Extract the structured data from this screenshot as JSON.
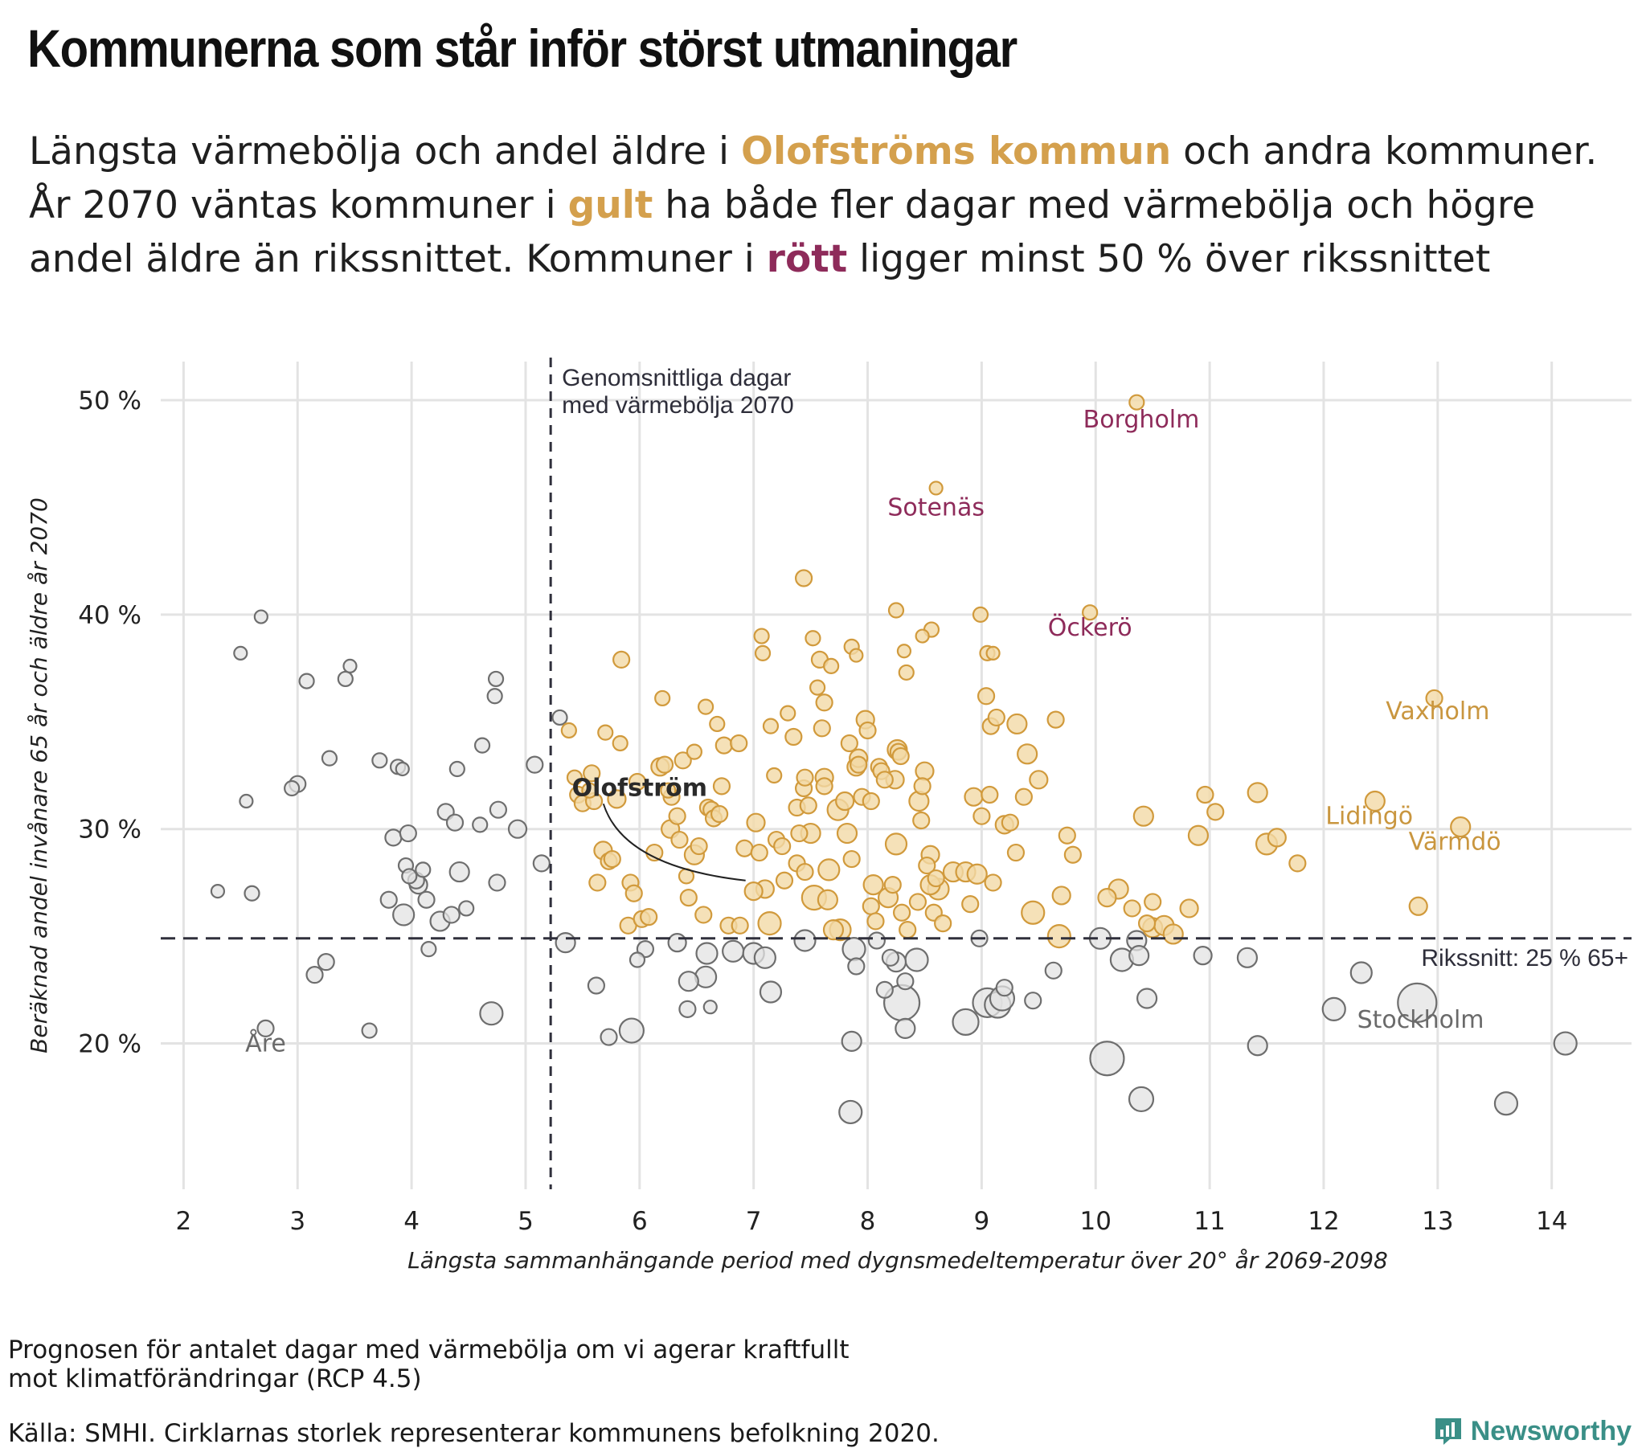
{
  "title": "Kommunerna som står inför störst utmaningar",
  "subtitle": {
    "p1": "Längsta värmebölja och andel äldre i ",
    "hl1": "Olofströms kommun",
    "p2": " och andra kommuner. År 2070 väntas kommuner i ",
    "hl2": "gult",
    "p3": " ha både fler dagar med värmebölja och högre andel äldre än rikssnittet. Kommuner i ",
    "hl3": "rött",
    "p4": " ligger minst 50 % över rikssnittet"
  },
  "colors": {
    "gold_fill": "#f2d9a6",
    "gold_stroke": "#d19a3c",
    "red_fill": "#d98aa8",
    "red_stroke": "#8e2b5a",
    "grey_fill": "#e3e3e3",
    "grey_stroke": "#6e6e6e",
    "grid": "#e3e3e3",
    "ref_line": "#30303c"
  },
  "chart_data": {
    "type": "scatter",
    "xlabel": "Längsta sammanhängande period med dygnsmedeltemperatur över 20° år 2069-2098",
    "ylabel": "Beräknad andel invånare 65 år och äldre år 2070",
    "xlim": [
      1.8,
      14.7
    ],
    "ylim": [
      13.2,
      51.8
    ],
    "x_ticks": [
      2,
      3,
      4,
      5,
      6,
      7,
      8,
      9,
      10,
      11,
      12,
      13,
      14
    ],
    "y_ticks": [
      20,
      30,
      40,
      50
    ],
    "y_tick_labels": [
      "20 %",
      "30 %",
      "40 %",
      "50 %"
    ],
    "grid": true,
    "reference_lines": {
      "vertical": {
        "x": 5.22,
        "label_line1": "Genomsnittliga dagar",
        "label_line2": "med värmebölja 2070"
      },
      "horizontal": {
        "y": 24.9,
        "label": "Rikssnitt: 25 % 65+"
      }
    },
    "labels": [
      {
        "text": "Borgholm",
        "x": 10.4,
        "y": 49.1,
        "group": "red"
      },
      {
        "text": "Sotenäs",
        "x": 8.6,
        "y": 45.0,
        "group": "red"
      },
      {
        "text": "Öckerö",
        "x": 9.95,
        "y": 39.4,
        "group": "red"
      },
      {
        "text": "Vaxholm",
        "x": 13.0,
        "y": 35.5,
        "group": "gold"
      },
      {
        "text": "Lidingö",
        "x": 12.4,
        "y": 30.6,
        "group": "gold"
      },
      {
        "text": "Värmdö",
        "x": 13.15,
        "y": 29.4,
        "group": "gold"
      },
      {
        "text": "Stockholm",
        "x": 12.85,
        "y": 21.1,
        "group": "grey"
      },
      {
        "text": "Åre",
        "x": 2.72,
        "y": 20.0,
        "group": "grey"
      }
    ],
    "highlight": {
      "text": "Olofström",
      "x": 7.0,
      "y": 27.3,
      "label_x": 6.0,
      "label_y": 32.0
    },
    "points": [
      [
        2.3,
        27.1,
        8
      ],
      [
        2.5,
        38.2,
        8
      ],
      [
        2.55,
        31.3,
        8
      ],
      [
        2.6,
        27.0,
        9
      ],
      [
        2.68,
        39.9,
        8
      ],
      [
        2.72,
        20.7,
        10
      ],
      [
        2.95,
        31.9,
        9
      ],
      [
        3.0,
        32.1,
        10
      ],
      [
        3.08,
        36.9,
        9
      ],
      [
        3.15,
        23.2,
        10
      ],
      [
        3.25,
        23.8,
        10
      ],
      [
        3.28,
        33.3,
        9
      ],
      [
        3.42,
        37.0,
        9
      ],
      [
        3.46,
        37.6,
        8
      ],
      [
        3.63,
        20.6,
        9
      ],
      [
        3.72,
        33.2,
        9
      ],
      [
        3.8,
        26.7,
        10
      ],
      [
        3.84,
        29.6,
        10
      ],
      [
        3.88,
        32.9,
        9
      ],
      [
        3.92,
        32.8,
        8
      ],
      [
        3.93,
        26.0,
        13
      ],
      [
        3.95,
        28.3,
        9
      ],
      [
        3.97,
        29.8,
        10
      ],
      [
        3.98,
        27.8,
        9
      ],
      [
        4.04,
        27.6,
        10
      ],
      [
        4.06,
        27.4,
        11
      ],
      [
        4.1,
        28.1,
        9
      ],
      [
        4.13,
        26.7,
        10
      ],
      [
        4.15,
        24.4,
        9
      ],
      [
        4.25,
        25.7,
        12
      ],
      [
        4.3,
        30.8,
        10
      ],
      [
        4.35,
        26.0,
        10
      ],
      [
        4.38,
        30.3,
        10
      ],
      [
        4.4,
        32.8,
        9
      ],
      [
        4.42,
        28.0,
        12
      ],
      [
        4.48,
        26.3,
        9
      ],
      [
        4.62,
        33.9,
        9
      ],
      [
        4.6,
        30.2,
        9
      ],
      [
        4.7,
        21.4,
        14
      ],
      [
        4.73,
        36.2,
        9
      ],
      [
        4.74,
        37.0,
        9
      ],
      [
        4.75,
        27.5,
        10
      ],
      [
        4.76,
        30.9,
        10
      ],
      [
        4.93,
        30.0,
        11
      ],
      [
        5.08,
        33.0,
        10
      ],
      [
        5.14,
        28.4,
        10
      ],
      [
        5.35,
        24.7,
        12
      ],
      [
        5.62,
        22.7,
        10
      ],
      [
        5.73,
        20.3,
        10
      ],
      [
        5.93,
        20.6,
        15
      ],
      [
        5.98,
        23.9,
        9
      ],
      [
        6.05,
        24.4,
        10
      ],
      [
        6.33,
        24.7,
        11
      ],
      [
        6.43,
        22.9,
        12
      ],
      [
        6.42,
        21.6,
        10
      ],
      [
        6.58,
        23.1,
        13
      ],
      [
        6.59,
        24.2,
        13
      ],
      [
        6.62,
        21.7,
        8
      ],
      [
        6.82,
        24.3,
        13
      ],
      [
        7.0,
        24.2,
        13
      ],
      [
        7.1,
        24.0,
        13
      ],
      [
        7.15,
        22.4,
        13
      ],
      [
        7.45,
        24.8,
        13
      ],
      [
        7.86,
        20.1,
        12
      ],
      [
        7.88,
        24.4,
        14
      ],
      [
        7.85,
        16.8,
        14
      ],
      [
        7.9,
        23.6,
        10
      ],
      [
        8.08,
        24.8,
        10
      ],
      [
        8.15,
        22.5,
        10
      ],
      [
        8.2,
        24.0,
        10
      ],
      [
        8.25,
        23.8,
        12
      ],
      [
        8.3,
        21.9,
        22
      ],
      [
        8.33,
        20.7,
        12
      ],
      [
        8.33,
        22.9,
        10
      ],
      [
        8.43,
        23.9,
        14
      ],
      [
        8.86,
        21.0,
        16
      ],
      [
        8.98,
        24.9,
        10
      ],
      [
        9.05,
        21.9,
        18
      ],
      [
        9.14,
        21.8,
        16
      ],
      [
        9.18,
        22.1,
        15
      ],
      [
        9.2,
        22.6,
        10
      ],
      [
        9.45,
        22.0,
        10
      ],
      [
        9.63,
        23.4,
        10
      ],
      [
        10.04,
        24.9,
        13
      ],
      [
        10.1,
        19.3,
        21
      ],
      [
        10.23,
        23.9,
        14
      ],
      [
        10.36,
        24.8,
        12
      ],
      [
        10.38,
        24.1,
        12
      ],
      [
        10.4,
        17.4,
        15
      ],
      [
        10.45,
        22.1,
        12
      ],
      [
        10.94,
        24.1,
        11
      ],
      [
        11.33,
        24.0,
        12
      ],
      [
        11.42,
        19.9,
        12
      ],
      [
        12.09,
        21.6,
        14
      ],
      [
        12.33,
        23.3,
        13
      ],
      [
        12.82,
        21.9,
        24
      ],
      [
        13.6,
        17.2,
        14
      ],
      [
        14.12,
        20.0,
        14
      ],
      [
        5.3,
        35.2,
        9
      ],
      [
        5.38,
        34.6,
        9
      ],
      [
        5.43,
        32.4,
        9
      ],
      [
        5.46,
        31.6,
        10
      ],
      [
        5.5,
        31.2,
        10
      ],
      [
        5.56,
        31.8,
        9
      ],
      [
        5.58,
        32.6,
        10
      ],
      [
        5.6,
        31.3,
        10
      ],
      [
        5.63,
        27.5,
        10
      ],
      [
        5.68,
        29.0,
        11
      ],
      [
        5.7,
        34.5,
        9
      ],
      [
        5.73,
        28.5,
        10
      ],
      [
        5.76,
        28.6,
        10
      ],
      [
        5.8,
        31.4,
        11
      ],
      [
        5.83,
        34.0,
        9
      ],
      [
        5.84,
        37.9,
        10
      ],
      [
        5.9,
        25.5,
        10
      ],
      [
        5.92,
        27.5,
        10
      ],
      [
        5.95,
        27.0,
        10
      ],
      [
        5.98,
        32.2,
        10
      ],
      [
        6.02,
        25.8,
        10
      ],
      [
        6.08,
        25.9,
        10
      ],
      [
        6.13,
        28.9,
        10
      ],
      [
        6.18,
        32.9,
        11
      ],
      [
        6.2,
        36.1,
        9
      ],
      [
        6.22,
        33.0,
        10
      ],
      [
        6.25,
        31.8,
        9
      ],
      [
        6.27,
        30.0,
        11
      ],
      [
        6.28,
        31.5,
        10
      ],
      [
        6.33,
        30.6,
        10
      ],
      [
        6.35,
        29.5,
        10
      ],
      [
        6.38,
        33.2,
        10
      ],
      [
        6.41,
        27.8,
        9
      ],
      [
        6.43,
        26.8,
        10
      ],
      [
        6.48,
        33.6,
        9
      ],
      [
        6.48,
        28.8,
        12
      ],
      [
        6.52,
        29.2,
        10
      ],
      [
        6.56,
        26.0,
        10
      ],
      [
        6.58,
        35.7,
        9
      ],
      [
        6.6,
        31.0,
        10
      ],
      [
        6.63,
        30.9,
        10
      ],
      [
        6.65,
        30.5,
        10
      ],
      [
        6.68,
        34.9,
        9
      ],
      [
        6.7,
        30.7,
        10
      ],
      [
        6.72,
        32.0,
        10
      ],
      [
        6.74,
        33.9,
        10
      ],
      [
        6.78,
        25.5,
        10
      ],
      [
        6.87,
        34.0,
        10
      ],
      [
        6.88,
        25.5,
        10
      ],
      [
        6.92,
        29.1,
        10
      ],
      [
        7.02,
        30.3,
        11
      ],
      [
        7.05,
        28.9,
        10
      ],
      [
        7.07,
        39.0,
        9
      ],
      [
        7.08,
        38.2,
        9
      ],
      [
        7.1,
        27.2,
        11
      ],
      [
        7.14,
        25.6,
        14
      ],
      [
        7.15,
        34.8,
        9
      ],
      [
        7.18,
        32.5,
        9
      ],
      [
        7.2,
        29.5,
        10
      ],
      [
        7.25,
        29.2,
        10
      ],
      [
        7.27,
        27.6,
        10
      ],
      [
        7.3,
        35.4,
        9
      ],
      [
        7.35,
        34.3,
        10
      ],
      [
        7.38,
        31.0,
        10
      ],
      [
        7.38,
        28.4,
        10
      ],
      [
        7.4,
        29.8,
        10
      ],
      [
        7.44,
        31.9,
        10
      ],
      [
        7.44,
        41.7,
        10
      ],
      [
        7.45,
        28.0,
        10
      ],
      [
        7.45,
        32.4,
        10
      ],
      [
        7.48,
        31.1,
        10
      ],
      [
        7.5,
        29.8,
        12
      ],
      [
        7.52,
        38.9,
        9
      ],
      [
        7.53,
        26.8,
        15
      ],
      [
        7.56,
        36.6,
        9
      ],
      [
        7.58,
        37.9,
        10
      ],
      [
        7.6,
        34.7,
        10
      ],
      [
        7.62,
        35.9,
        10
      ],
      [
        7.62,
        32.4,
        11
      ],
      [
        7.62,
        32.0,
        10
      ],
      [
        7.65,
        26.7,
        12
      ],
      [
        7.66,
        28.1,
        13
      ],
      [
        7.68,
        37.6,
        9
      ],
      [
        7.7,
        25.3,
        12
      ],
      [
        7.74,
        30.9,
        13
      ],
      [
        7.76,
        25.3,
        13
      ],
      [
        7.8,
        31.3,
        11
      ],
      [
        7.82,
        29.8,
        12
      ],
      [
        7.84,
        34.0,
        10
      ],
      [
        7.86,
        28.6,
        10
      ],
      [
        7.9,
        32.9,
        11
      ],
      [
        7.92,
        33.3,
        11
      ],
      [
        7.92,
        33.0,
        10
      ],
      [
        7.95,
        31.5,
        10
      ],
      [
        7.98,
        35.1,
        11
      ],
      [
        8.0,
        34.6,
        10
      ],
      [
        8.03,
        26.4,
        10
      ],
      [
        8.03,
        31.3,
        10
      ],
      [
        8.05,
        27.4,
        12
      ],
      [
        8.07,
        25.7,
        10
      ],
      [
        8.1,
        32.9,
        10
      ],
      [
        8.12,
        32.7,
        10
      ],
      [
        8.15,
        32.3,
        10
      ],
      [
        8.18,
        26.8,
        12
      ],
      [
        8.22,
        27.4,
        10
      ],
      [
        8.24,
        32.3,
        11
      ],
      [
        8.25,
        29.3,
        13
      ],
      [
        8.26,
        33.7,
        12
      ],
      [
        8.27,
        33.6,
        10
      ],
      [
        8.29,
        33.4,
        10
      ],
      [
        8.3,
        26.1,
        10
      ],
      [
        8.34,
        37.3,
        9
      ],
      [
        8.35,
        25.3,
        10
      ],
      [
        8.44,
        26.6,
        10
      ],
      [
        8.45,
        31.3,
        12
      ],
      [
        8.47,
        30.4,
        10
      ],
      [
        8.48,
        32.0,
        10
      ],
      [
        8.5,
        32.7,
        11
      ],
      [
        8.52,
        28.3,
        10
      ],
      [
        8.55,
        27.4,
        12
      ],
      [
        8.55,
        28.8,
        11
      ],
      [
        8.58,
        26.1,
        10
      ],
      [
        8.6,
        27.7,
        10
      ],
      [
        8.62,
        27.2,
        13
      ],
      [
        8.66,
        25.6,
        10
      ],
      [
        8.75,
        28.0,
        12
      ],
      [
        8.86,
        28.0,
        12
      ],
      [
        8.9,
        26.5,
        10
      ],
      [
        8.93,
        31.5,
        11
      ],
      [
        8.96,
        27.9,
        12
      ],
      [
        9.0,
        30.6,
        10
      ],
      [
        9.04,
        36.2,
        10
      ],
      [
        9.07,
        31.6,
        10
      ],
      [
        9.08,
        34.8,
        10
      ],
      [
        9.1,
        27.5,
        10
      ],
      [
        9.13,
        35.2,
        10
      ],
      [
        9.2,
        30.2,
        11
      ],
      [
        9.25,
        30.3,
        10
      ],
      [
        9.3,
        28.9,
        10
      ],
      [
        9.31,
        34.9,
        12
      ],
      [
        9.37,
        31.5,
        10
      ],
      [
        9.4,
        33.5,
        12
      ],
      [
        9.45,
        26.1,
        14
      ],
      [
        9.5,
        32.3,
        11
      ],
      [
        9.65,
        35.1,
        10
      ],
      [
        9.68,
        25.0,
        14
      ],
      [
        9.7,
        26.9,
        11
      ],
      [
        9.75,
        29.7,
        10
      ],
      [
        9.8,
        28.8,
        10
      ],
      [
        10.1,
        26.8,
        11
      ],
      [
        10.2,
        27.2,
        12
      ],
      [
        10.32,
        26.3,
        10
      ],
      [
        10.42,
        30.6,
        12
      ],
      [
        10.45,
        25.6,
        10
      ],
      [
        10.5,
        26.6,
        10
      ],
      [
        10.5,
        25.4,
        12
      ],
      [
        10.6,
        25.5,
        12
      ],
      [
        10.68,
        25.1,
        12
      ],
      [
        10.82,
        26.3,
        11
      ],
      [
        10.9,
        29.7,
        12
      ],
      [
        10.96,
        31.6,
        10
      ],
      [
        11.05,
        30.8,
        10
      ],
      [
        11.42,
        31.7,
        12
      ],
      [
        11.5,
        29.3,
        13
      ],
      [
        11.59,
        29.6,
        11
      ],
      [
        11.77,
        28.4,
        10
      ],
      [
        12.45,
        31.3,
        12
      ],
      [
        12.83,
        26.4,
        11
      ],
      [
        12.97,
        36.1,
        10
      ],
      [
        13.2,
        30.1,
        12
      ],
      [
        7.0,
        27.1,
        11
      ],
      [
        7.86,
        38.5,
        9
      ],
      [
        7.9,
        38.1,
        8
      ],
      [
        8.25,
        40.2,
        9
      ],
      [
        8.32,
        38.3,
        8
      ],
      [
        8.48,
        39.0,
        8
      ],
      [
        8.56,
        39.3,
        9
      ],
      [
        8.6,
        45.9,
        8
      ],
      [
        8.99,
        40.0,
        9
      ],
      [
        9.05,
        38.2,
        9
      ],
      [
        9.1,
        38.2,
        8
      ],
      [
        9.95,
        40.1,
        9
      ],
      [
        10.36,
        49.9,
        9
      ]
    ],
    "point_fields": [
      "x",
      "y",
      "radius_px"
    ],
    "point_groups": {
      "grey": [
        0,
        98
      ],
      "gold": [
        99,
        283
      ],
      "red": [
        284,
        295
      ]
    }
  },
  "footnotes": {
    "line1": "Prognosen för antalet dagar med värmebölja om vi agerar kraftfullt",
    "line2": "mot klimatförändringar (RCP 4.5)",
    "source": "Källa: SMHI. Cirklarnas storlek representerar kommunens befolkning 2020."
  },
  "brand": {
    "name": "Newsworthy",
    "icon": "bar-chart-logo-icon"
  }
}
